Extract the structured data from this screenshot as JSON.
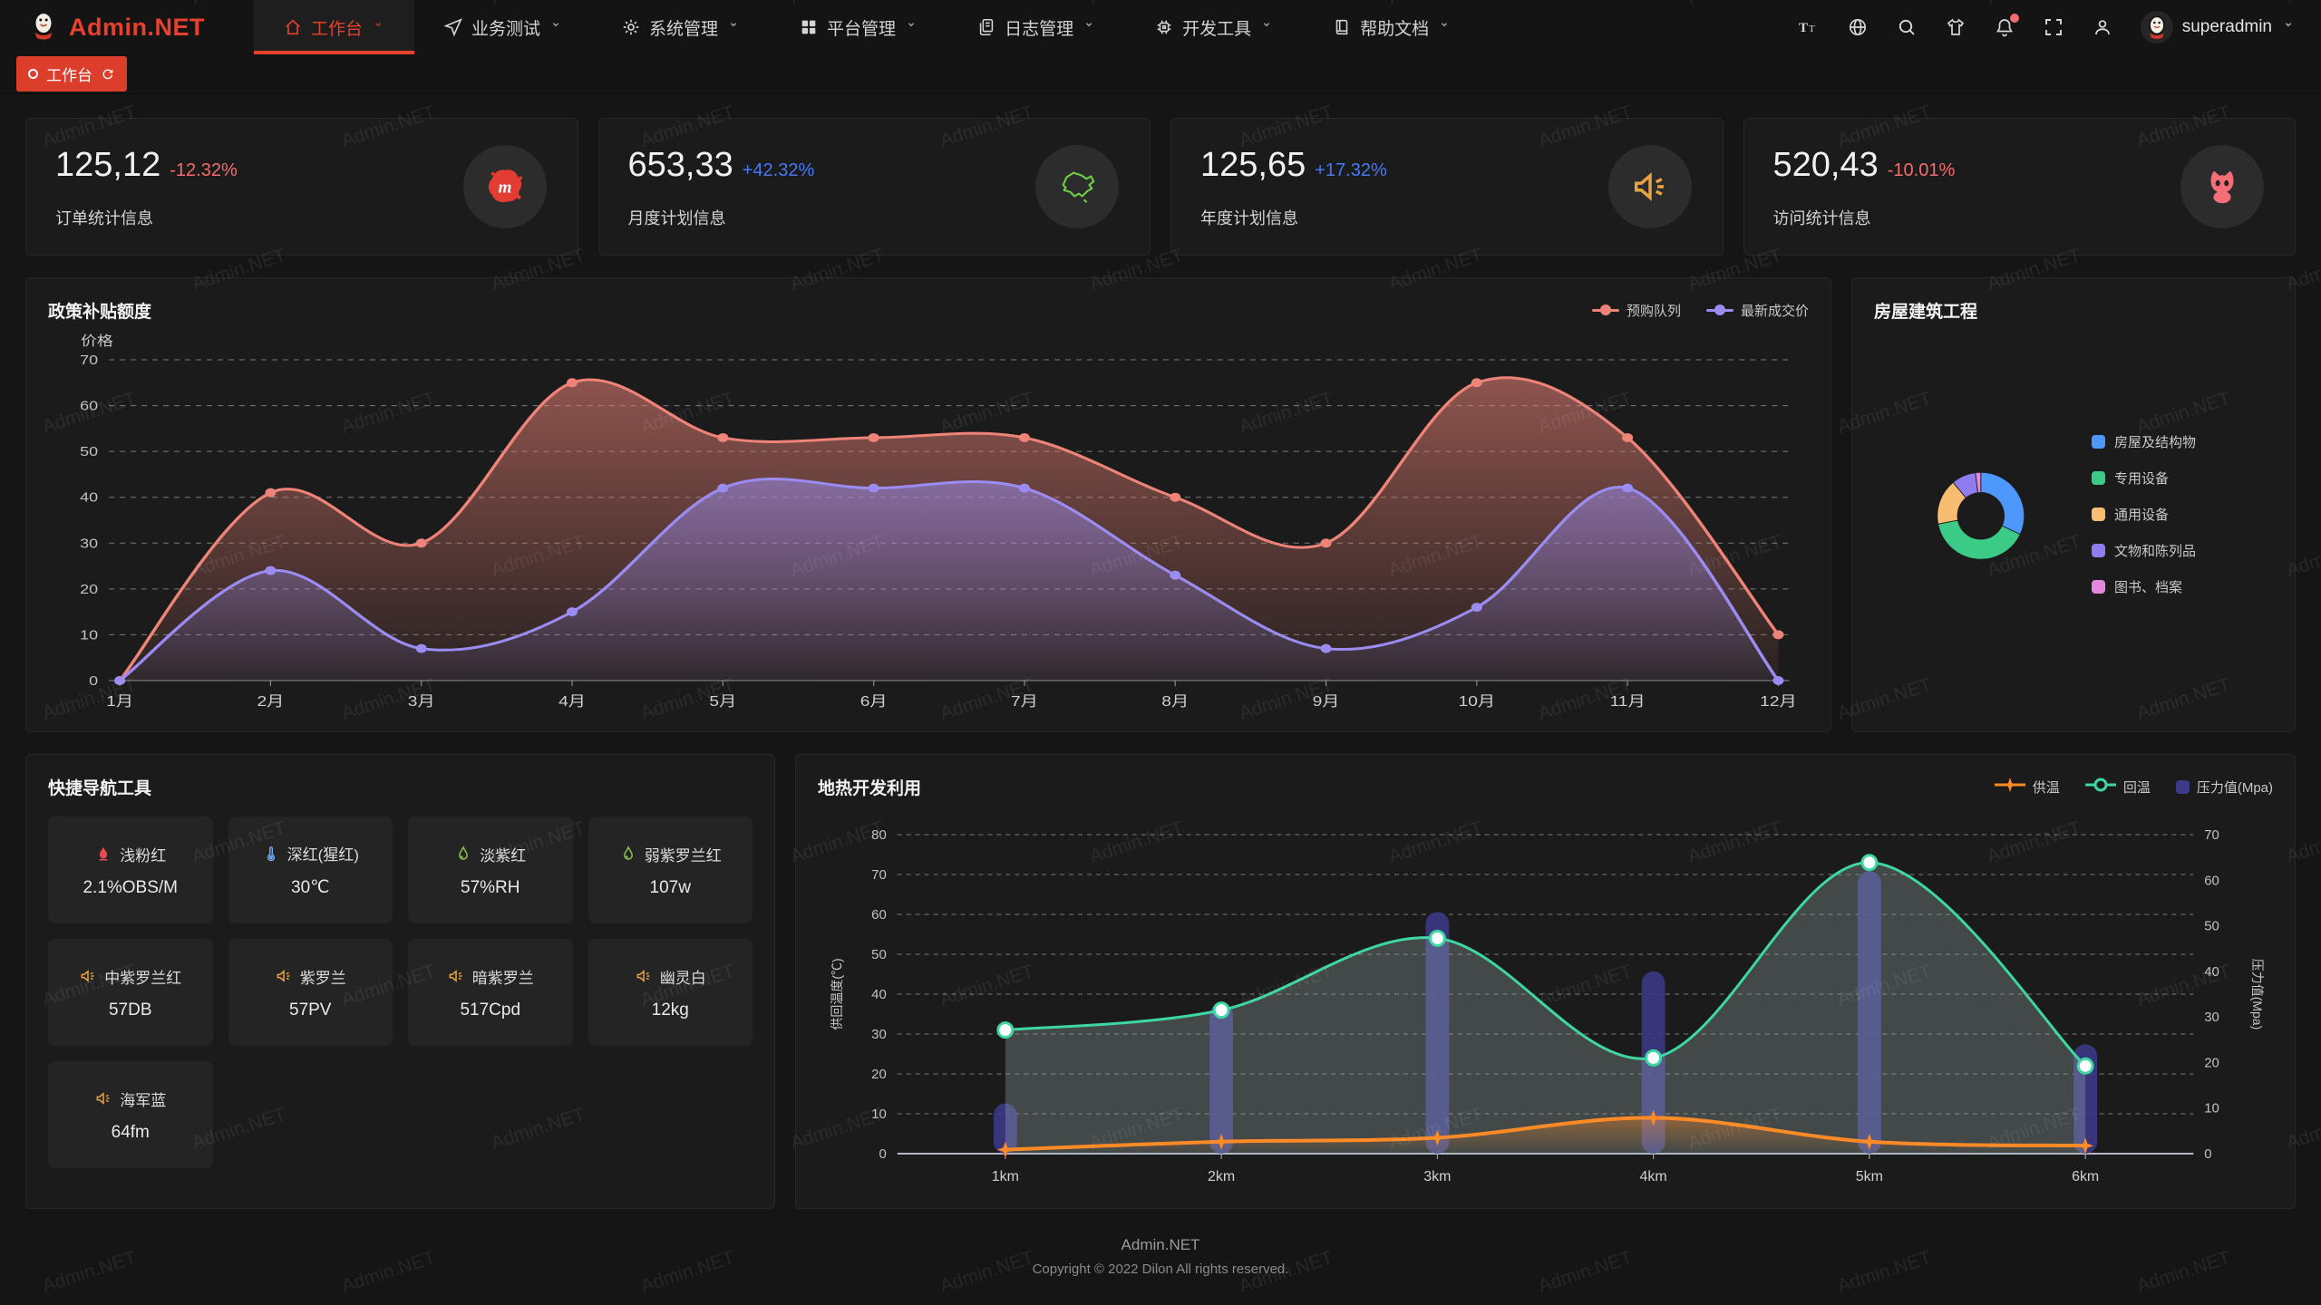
{
  "watermark": {
    "text": "Admin.NET"
  },
  "navbar": {
    "logo": {
      "title": "Admin.NET",
      "color": "#e8402d"
    },
    "menu": [
      {
        "label": "工作台",
        "icon": "home",
        "active": true
      },
      {
        "label": "业务测试",
        "icon": "send",
        "active": false
      },
      {
        "label": "系统管理",
        "icon": "gear",
        "active": false
      },
      {
        "label": "平台管理",
        "icon": "grid",
        "active": false
      },
      {
        "label": "日志管理",
        "icon": "log",
        "active": false
      },
      {
        "label": "开发工具",
        "icon": "cpu",
        "active": false
      },
      {
        "label": "帮助文档",
        "icon": "book",
        "active": false
      }
    ],
    "actions": [
      {
        "name": "font-size-icon",
        "icon": "fontsize",
        "badge": false
      },
      {
        "name": "language-icon",
        "icon": "globe",
        "badge": false
      },
      {
        "name": "search-icon",
        "icon": "search",
        "badge": false
      },
      {
        "name": "theme-icon",
        "icon": "shirt",
        "badge": false
      },
      {
        "name": "notification-icon",
        "icon": "bell",
        "badge": true
      },
      {
        "name": "fullscreen-icon",
        "icon": "fullscreen",
        "badge": false
      },
      {
        "name": "user-icon",
        "icon": "person",
        "badge": false
      }
    ],
    "user": {
      "name": "superadmin"
    }
  },
  "tagbar": {
    "tags": [
      {
        "label": "工作台",
        "active": true
      }
    ]
  },
  "stats": [
    {
      "value": "125,12",
      "delta": "-12.32%",
      "delta_color": "#f56c6c",
      "label": "订单统计信息",
      "icon": "meetup",
      "icon_color": "#e23c33"
    },
    {
      "value": "653,33",
      "delta": "+42.32%",
      "delta_color": "#4579f5",
      "label": "月度计划信息",
      "icon": "chinamap",
      "icon_color": "#6fce44"
    },
    {
      "value": "125,65",
      "delta": "+17.32%",
      "delta_color": "#4579f5",
      "label": "年度计划信息",
      "icon": "speaker",
      "icon_color": "#eaa444"
    },
    {
      "value": "520,43",
      "delta": "-10.01%",
      "delta_color": "#f56c6c",
      "label": "访问统计信息",
      "icon": "cat",
      "icon_color": "#f56d76"
    }
  ],
  "chart_data": [
    {
      "type": "area",
      "title": "政策补贴额度",
      "ylabel": "价格",
      "ylim": [
        0,
        70
      ],
      "grid": true,
      "legend_position": "top-right",
      "categories": [
        "1月",
        "2月",
        "3月",
        "4月",
        "5月",
        "6月",
        "7月",
        "8月",
        "9月",
        "10月",
        "11月",
        "12月"
      ],
      "series": [
        {
          "name": "预购队列",
          "color": "#ee8378",
          "values": [
            0,
            41,
            30,
            65,
            53,
            53,
            53,
            40,
            30,
            65,
            53,
            10
          ]
        },
        {
          "name": "最新成交价",
          "color": "#9a8cf0",
          "values": [
            0,
            24,
            7,
            15,
            42,
            42,
            42,
            23,
            7,
            16,
            42,
            0
          ]
        }
      ]
    },
    {
      "type": "pie",
      "title": "房屋建筑工程",
      "legend_position": "right",
      "labels": [
        "房屋及结构物",
        "专用设备",
        "通用设备",
        "文物和陈列品",
        "图书、档案"
      ],
      "values": [
        32,
        40,
        17,
        9,
        2
      ],
      "colors": [
        "#4e97fd",
        "#3ccb87",
        "#f8bd70",
        "#8f7cee",
        "#e587df"
      ]
    },
    {
      "type": "line-bar",
      "title": "地热开发利用",
      "categories": [
        "1km",
        "2km",
        "3km",
        "4km",
        "5km",
        "6km"
      ],
      "ylabel_left": "供回温度(℃)",
      "ylim_left": [
        0,
        80
      ],
      "ylabel_right": "压力值(Mpa)",
      "ylim_right": [
        0,
        70
      ],
      "grid": true,
      "legend_position": "top-right",
      "series": [
        {
          "name": "供温",
          "type": "line",
          "marker": "star",
          "color": "#ff8a26",
          "axis": "left",
          "values": [
            1,
            3,
            4,
            9,
            3,
            2
          ]
        },
        {
          "name": "回温",
          "type": "line",
          "marker": "circle",
          "color": "#3ed6a3",
          "axis": "left",
          "values": [
            31,
            36,
            54,
            24,
            73,
            22
          ]
        },
        {
          "name": "压力值(Mpa)",
          "type": "bar",
          "marker": "square",
          "color": "#3d3a8c",
          "axis": "right",
          "values": [
            11,
            33,
            53,
            40,
            62,
            24
          ]
        }
      ]
    }
  ],
  "panels": {
    "quicknav": {
      "title": "快捷导航工具",
      "items": [
        {
          "icon": "fire",
          "icon_color": "#e34d4d",
          "label": "浅粉红",
          "value": "2.1%OBS/M"
        },
        {
          "icon": "thermometer",
          "icon_color": "#6da8e8",
          "label": "深红(猩红)",
          "value": "30℃"
        },
        {
          "icon": "drop",
          "icon_color": "#8bc34a",
          "label": "淡紫红",
          "value": "57%RH"
        },
        {
          "icon": "drop",
          "icon_color": "#8bc34a",
          "label": "弱紫罗兰红",
          "value": "107w"
        },
        {
          "icon": "speaker",
          "icon_color": "#eaa444",
          "label": "中紫罗兰红",
          "value": "57DB"
        },
        {
          "icon": "speaker",
          "icon_color": "#eaa444",
          "label": "紫罗兰",
          "value": "57PV"
        },
        {
          "icon": "speaker",
          "icon_color": "#eaa444",
          "label": "暗紫罗兰",
          "value": "517Cpd"
        },
        {
          "icon": "speaker",
          "icon_color": "#eaa444",
          "label": "幽灵白",
          "value": "12kg"
        },
        {
          "icon": "speaker",
          "icon_color": "#eaa444",
          "label": "海军蓝",
          "value": "64fm"
        }
      ]
    }
  },
  "footer": {
    "line1": "Admin.NET",
    "line2": "Copyright © 2022 Dilon All rights reserved."
  }
}
